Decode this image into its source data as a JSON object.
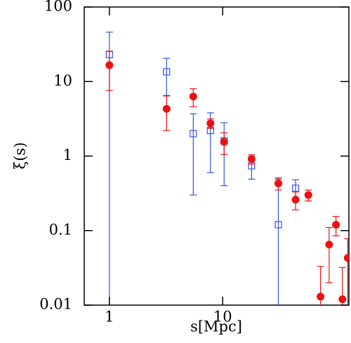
{
  "chart_data": {
    "type": "scatter",
    "xlabel": "s[Mpc]",
    "ylabel": "ξ(s)",
    "xscale": "log",
    "yscale": "log",
    "xlim": [
      0.6,
      130
    ],
    "ylim": [
      0.01,
      100
    ],
    "xticks": [
      1,
      10
    ],
    "yticks": [
      0.01,
      0.1,
      1,
      10,
      100
    ],
    "series": [
      {
        "color": "#3355dd",
        "marker": "square",
        "x": [
          1,
          3.2,
          5.5,
          7.8,
          10.3,
          18,
          31,
          44
        ],
        "values": [
          23,
          13.5,
          2.0,
          2.2,
          1.6,
          0.74,
          0.12,
          0.37
        ],
        "errors": [
          23,
          7,
          1.7,
          1.6,
          1.2,
          0.25,
          0.37,
          0.11
        ]
      },
      {
        "color": "#ee1111",
        "marker": "circle",
        "x": [
          1,
          3.2,
          5.5,
          7.8,
          10.3,
          18,
          31,
          44,
          57,
          73,
          87,
          100,
          114,
          127
        ],
        "values": [
          16.6,
          4.3,
          6.3,
          2.75,
          1.55,
          0.91,
          0.43,
          0.26,
          0.3,
          0.013,
          0.065,
          0.12,
          0.012,
          0.043
        ],
        "errors": [
          9,
          2.1,
          1.7,
          0.4,
          0.5,
          0.13,
          0.08,
          0.07,
          0.05,
          0.02,
          0.045,
          0.035,
          0.02,
          0.035
        ]
      }
    ]
  }
}
